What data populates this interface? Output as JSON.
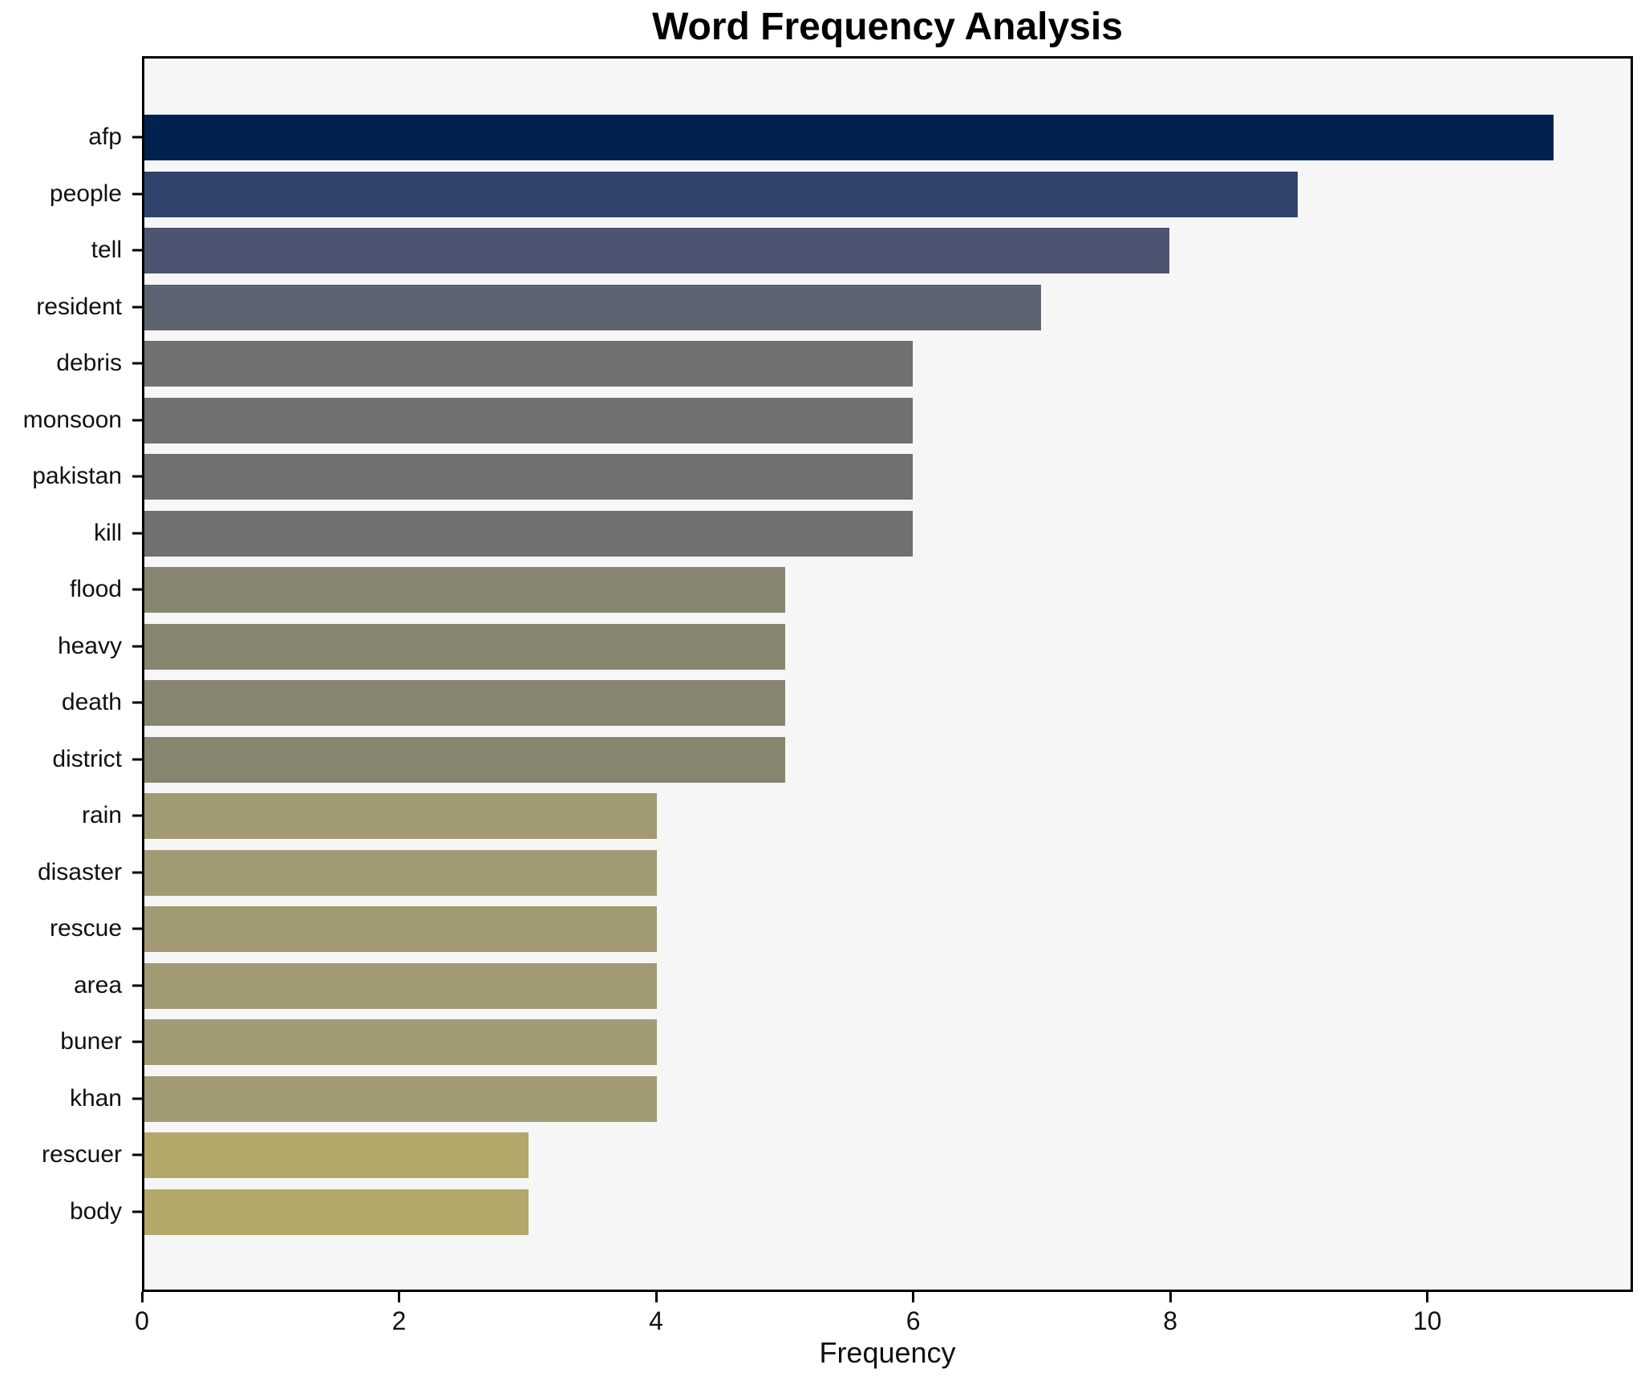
{
  "title": "Word Frequency Analysis",
  "xlabel": "Frequency",
  "plot_background": "#f6f6f7",
  "spine_color": "#000000",
  "chart_data": {
    "type": "bar",
    "orientation": "horizontal",
    "title": "Word Frequency Analysis",
    "xlabel": "Frequency",
    "ylabel": "",
    "categories": [
      "afp",
      "people",
      "tell",
      "resident",
      "debris",
      "monsoon",
      "pakistan",
      "kill",
      "flood",
      "heavy",
      "death",
      "district",
      "rain",
      "disaster",
      "rescue",
      "area",
      "buner",
      "khan",
      "rescuer",
      "body"
    ],
    "values": [
      11,
      9,
      8,
      7,
      6,
      6,
      6,
      6,
      5,
      5,
      5,
      5,
      4,
      4,
      4,
      4,
      4,
      4,
      3,
      3
    ],
    "bar_colors": [
      "#01224e",
      "#2f436c",
      "#4b5471",
      "#5d6371",
      "#707071",
      "#707071",
      "#707071",
      "#707071",
      "#87856f",
      "#87856f",
      "#87856f",
      "#87856f",
      "#a29a72",
      "#a29a72",
      "#a29a72",
      "#a29a72",
      "#a29a72",
      "#a29a72",
      "#b2a86a",
      "#b2a86a"
    ],
    "xlim": [
      0,
      11.6
    ],
    "x_ticks": [
      0,
      2,
      4,
      6,
      8,
      10
    ],
    "grid": false,
    "legend": "none",
    "plot_bg": "#f6f6f7"
  }
}
